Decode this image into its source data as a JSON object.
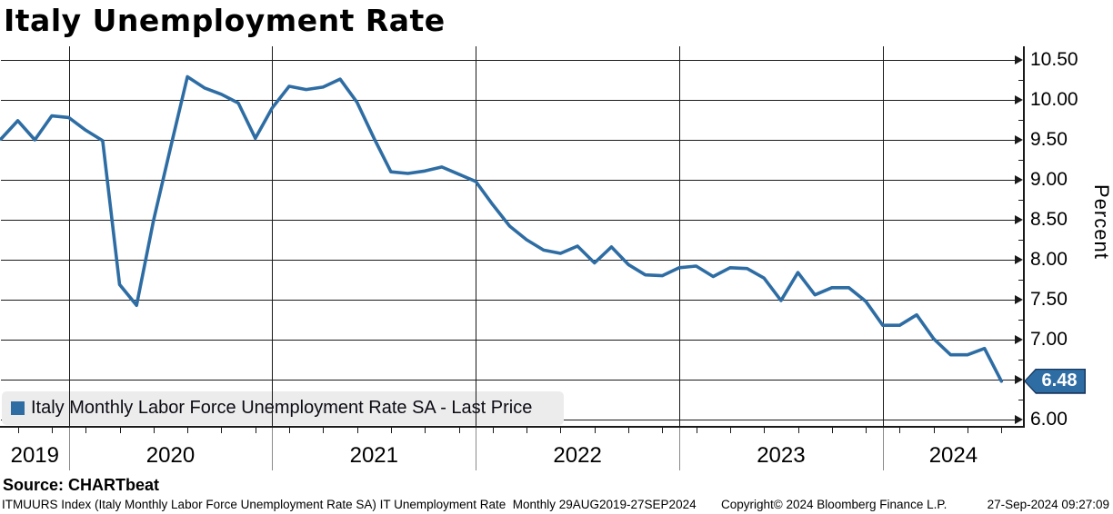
{
  "header": {
    "title": "Italy Unemployment Rate"
  },
  "y_axis": {
    "label": "Percent",
    "tick_values": [
      10.5,
      10.0,
      9.5,
      9.0,
      8.5,
      8.0,
      7.5,
      7.0,
      6.5,
      6.0
    ],
    "tick_labels": [
      "10.50",
      "10.00",
      "9.50",
      "9.00",
      "8.50",
      "8.00",
      "7.50",
      "7.00",
      "6.50",
      "6.00"
    ],
    "minor_tick_values": [
      10.25,
      9.75,
      9.25,
      8.75,
      8.25,
      7.75,
      7.25,
      6.75,
      6.25
    ]
  },
  "x_axis": {
    "year_labels": [
      "2019",
      "2020",
      "2021",
      "2022",
      "2023",
      "2024"
    ]
  },
  "legend": {
    "label": "Italy Monthly Labor Force Unemployment Rate SA - Last Price"
  },
  "last_price": {
    "value": "6.48"
  },
  "source": {
    "label": "Source: CHARTbeat"
  },
  "footer": {
    "description": "ITMUURS Index (Italy Monthly Labor Force Unemployment Rate SA) IT Unemployment Rate  Monthly 29AUG2019-27SEP2024",
    "copyright": "Copyright© 2024 Bloomberg Finance L.P.",
    "timestamp": "27-Sep-2024 09:27:09"
  },
  "colors": {
    "line": "#2e6da4",
    "badge_fill": "#2e6da4",
    "badge_border": "#17365d",
    "grid": "#1a1a1a",
    "legend_bg": "#ececec"
  },
  "chart_data": {
    "type": "line",
    "title": "Italy Unemployment Rate",
    "xlabel": "",
    "ylabel": "Percent",
    "ylim": [
      6.0,
      10.5
    ],
    "grid": true,
    "legend_position": "bottom-left",
    "categories": [
      "2019-09",
      "2019-10",
      "2019-11",
      "2019-12",
      "2020-01",
      "2020-02",
      "2020-03",
      "2020-04",
      "2020-05",
      "2020-06",
      "2020-07",
      "2020-08",
      "2020-09",
      "2020-10",
      "2020-11",
      "2020-12",
      "2021-01",
      "2021-02",
      "2021-03",
      "2021-04",
      "2021-05",
      "2021-06",
      "2021-07",
      "2021-08",
      "2021-09",
      "2021-10",
      "2021-11",
      "2021-12",
      "2022-01",
      "2022-02",
      "2022-03",
      "2022-04",
      "2022-05",
      "2022-06",
      "2022-07",
      "2022-08",
      "2022-09",
      "2022-10",
      "2022-11",
      "2022-12",
      "2023-01",
      "2023-02",
      "2023-03",
      "2023-04",
      "2023-05",
      "2023-06",
      "2023-07",
      "2023-08",
      "2023-09",
      "2023-10",
      "2023-11",
      "2023-12",
      "2024-01",
      "2024-02",
      "2024-03",
      "2024-04",
      "2024-05",
      "2024-06",
      "2024-07",
      "2024-08"
    ],
    "series": [
      {
        "name": "Italy Monthly Labor Force Unemployment Rate SA - Last Price",
        "color": "#2e6da4",
        "last_price": 6.48,
        "values": [
          9.51,
          9.74,
          9.5,
          9.8,
          9.78,
          9.62,
          9.49,
          7.69,
          7.43,
          8.49,
          9.4,
          10.29,
          10.15,
          10.07,
          9.96,
          9.52,
          9.9,
          10.17,
          10.13,
          10.16,
          10.26,
          9.97,
          9.52,
          9.1,
          9.08,
          9.11,
          9.16,
          9.07,
          8.98,
          8.69,
          8.42,
          8.25,
          8.12,
          8.08,
          8.17,
          7.96,
          8.16,
          7.94,
          7.81,
          7.8,
          7.9,
          7.92,
          7.79,
          7.9,
          7.89,
          7.77,
          7.49,
          7.84,
          7.56,
          7.65,
          7.65,
          7.48,
          7.18,
          7.18,
          7.31,
          7.01,
          6.81,
          6.81,
          6.89,
          6.48
        ]
      }
    ]
  }
}
